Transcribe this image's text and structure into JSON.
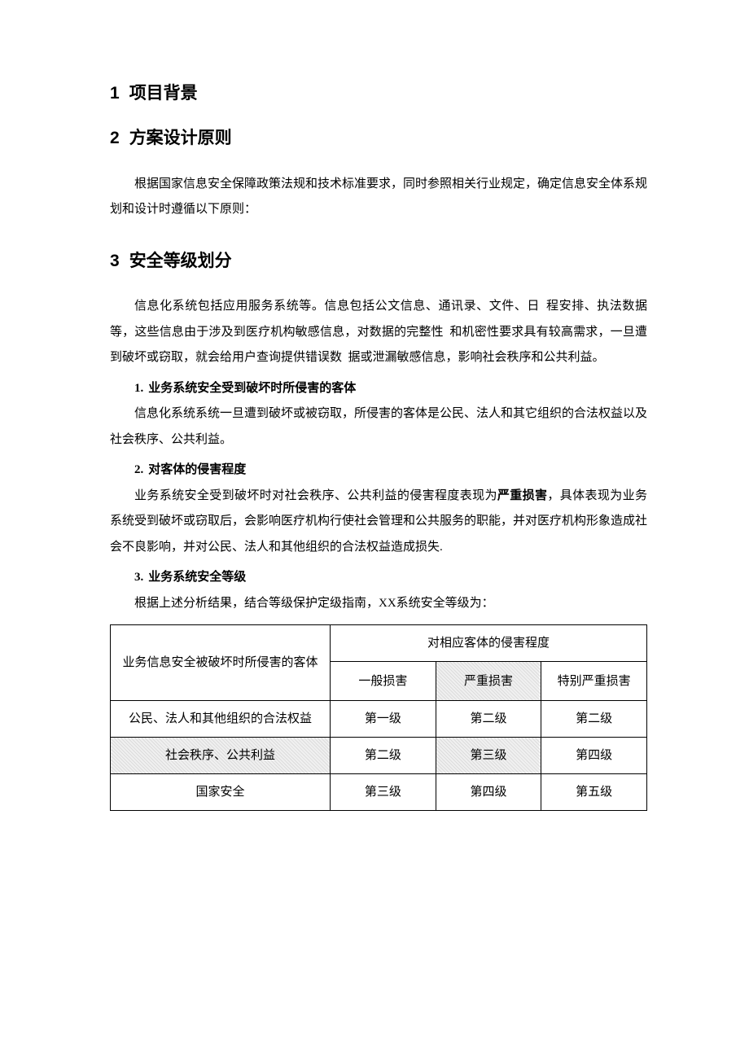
{
  "headings": {
    "h1": {
      "num": "1",
      "title": "项目背景"
    },
    "h2": {
      "num": "2",
      "title": "方案设计原则"
    },
    "h3": {
      "num": "3",
      "title": "安全等级划分"
    }
  },
  "p_design_principle": "根据国家信息安全保障政策法规和技术标准要求，同时参照相关行业规定，确定信息安全体系规划和设计时遵循以下原则：",
  "p_level_intro": "信息化系统包括应用服务系统等。信息包括公文信息、通讯录、文件、日 程安排、执法数据等，这些信息由于涉及到医疗机构敏感信息，对数据的完整性 和机密性要求具有较高需求，一旦遭到破坏或窃取，就会给用户查询提供错误数 据或泄漏敏感信息，影响社会秩序和公共利益。",
  "sub1": {
    "num": "1.",
    "title": "业务系统安全受到破坏时所侵害的客体"
  },
  "p_sub1": "信息化系统系统一旦遭到破坏或被窃取，所侵害的客体是公民、法人和其它组织的合法权益以及社会秩序、公共利益。",
  "sub2": {
    "num": "2.",
    "title": "对客体的侵害程度"
  },
  "p_sub2_a": "业务系统安全受到破坏时对社会秩序、公共利益的侵害程度表现为",
  "p_sub2_bold": "严重损害",
  "p_sub2_b": "，具体表现为业务系统受到破坏或窃取后，会影响医疗机构行使社会管理和公共服务的职能，并对医疗机构形象造成社会不良影响，并对公民、法人和其他组织的合法权益造成损失.",
  "sub3": {
    "num": "3.",
    "title": "业务系统安全等级"
  },
  "p_sub3": "根据上述分析结果，结合等级保护定级指南，XX系统安全等级为：",
  "table": {
    "header_subject": "业务信息安全被破坏时所侵害的客体",
    "header_degree_group": "对相应客体的侵害程度",
    "col_general": "一般损害",
    "col_severe": "严重损害",
    "col_esp_severe": "特别严重损害",
    "rows": [
      {
        "subject": "公民、法人和其他组织的合法权益",
        "c1": "第一级",
        "c2": "第二级",
        "c3": "第二级",
        "hl_row": false
      },
      {
        "subject": "社会秩序、公共利益",
        "c1": "第二级",
        "c2": "第三级",
        "c3": "第四级",
        "hl_row": true
      },
      {
        "subject": "国家安全",
        "c1": "第三级",
        "c2": "第四级",
        "c3": "第五级",
        "hl_row": false
      }
    ]
  },
  "colors": {
    "text": "#000000",
    "background": "#ffffff",
    "table_border": "#000000",
    "highlight_light": "#f0f0f0",
    "highlight_dark": "#dcdcdc"
  },
  "typography": {
    "heading_font": "SimHei",
    "body_font": "SimSun",
    "heading_size_pt": 16,
    "body_size_pt": 11,
    "line_height": 2.1
  }
}
